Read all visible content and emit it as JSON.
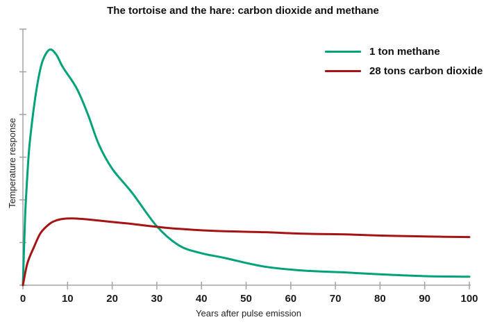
{
  "chart_data": {
    "type": "line",
    "title": "The tortoise and the hare: carbon dioxide and methane",
    "xlabel": "Years after pulse emission",
    "ylabel": "Temperature response",
    "xlim": [
      0,
      100
    ],
    "ylim": [
      0,
      1
    ],
    "x_ticks": [
      0,
      10,
      20,
      30,
      40,
      50,
      60,
      70,
      80,
      90,
      100
    ],
    "y_tick_count": 6,
    "y_ticks_labeled": false,
    "grid": false,
    "legend_position": "top-right",
    "axis_color": "#a3a3a3",
    "series": [
      {
        "id": "methane",
        "name": "1 ton methane",
        "color": "#00a27a",
        "x": [
          0,
          0.5,
          1,
          1.5,
          2.5,
          3.5,
          4.5,
          6,
          7.5,
          9,
          12,
          14.5,
          17,
          20,
          24.5,
          30,
          35,
          40,
          45,
          54,
          63,
          73,
          82,
          91,
          100
        ],
        "y": [
          0,
          0.27,
          0.43,
          0.55,
          0.7,
          0.81,
          0.88,
          0.92,
          0.9,
          0.85,
          0.77,
          0.67,
          0.55,
          0.455,
          0.36,
          0.23,
          0.155,
          0.125,
          0.107,
          0.073,
          0.057,
          0.049,
          0.041,
          0.035,
          0.033
        ]
      },
      {
        "id": "co2",
        "name": "28 tons carbon dioxide",
        "color": "#a51413",
        "x": [
          0,
          1,
          2.5,
          4,
          6,
          7.5,
          9,
          11,
          13,
          15,
          20,
          24.5,
          30,
          35,
          43,
          54,
          63,
          73,
          82,
          91,
          100
        ],
        "y": [
          0,
          0.085,
          0.15,
          0.205,
          0.24,
          0.253,
          0.259,
          0.261,
          0.259,
          0.256,
          0.247,
          0.239,
          0.228,
          0.22,
          0.212,
          0.207,
          0.201,
          0.198,
          0.193,
          0.19,
          0.188
        ]
      }
    ]
  }
}
